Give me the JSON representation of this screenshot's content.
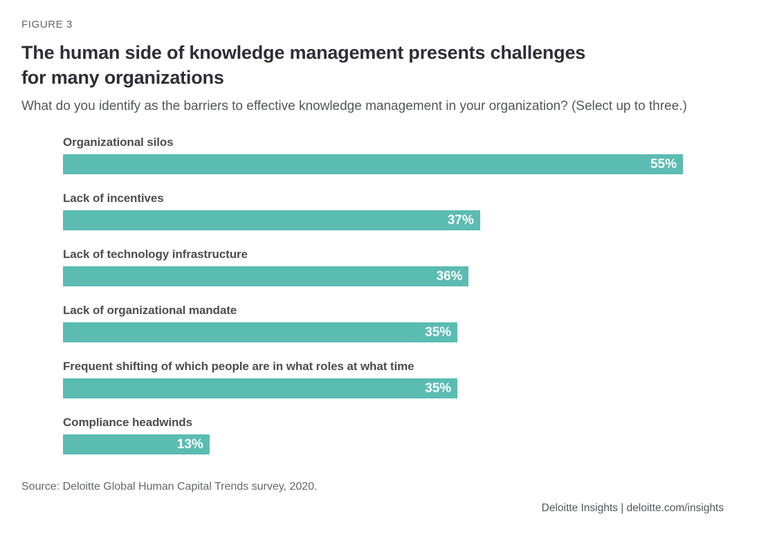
{
  "figure_label": "FIGURE 3",
  "title": "The human side of knowledge management presents challenges for many organizations",
  "subtitle": "What do you identify as the barriers to effective knowledge management in your organization? (Select up to three.)",
  "source": "Source: Deloitte Global Human Capital Trends survey, 2020.",
  "footer": "Deloitte Insights | deloitte.com/insights",
  "colors": {
    "bar": "#5bbcb2",
    "title_text": "#2e2e38",
    "label_text": "#4d4d4f",
    "muted_text": "#63666a",
    "value_text": "#ffffff"
  },
  "chart_data": {
    "type": "bar",
    "orientation": "horizontal",
    "title": "The human side of knowledge management presents challenges for many organizations",
    "question": "What do you identify as the barriers to effective knowledge management in your organization? (Select up to three.)",
    "categories": [
      "Organizational silos",
      "Lack of incentives",
      "Lack of technology infrastructure",
      "Lack of organizational mandate",
      "Frequent shifting of which people are in what roles at what time",
      "Compliance headwinds"
    ],
    "values": [
      55,
      37,
      36,
      35,
      35,
      13
    ],
    "value_suffix": "%",
    "value_labels": [
      "55%",
      "37%",
      "36%",
      "35%",
      "35%",
      "13%"
    ],
    "scale_max": 55,
    "xlabel": "",
    "ylabel": "",
    "grid": false,
    "legend": false,
    "data_labels": "inside-end"
  }
}
